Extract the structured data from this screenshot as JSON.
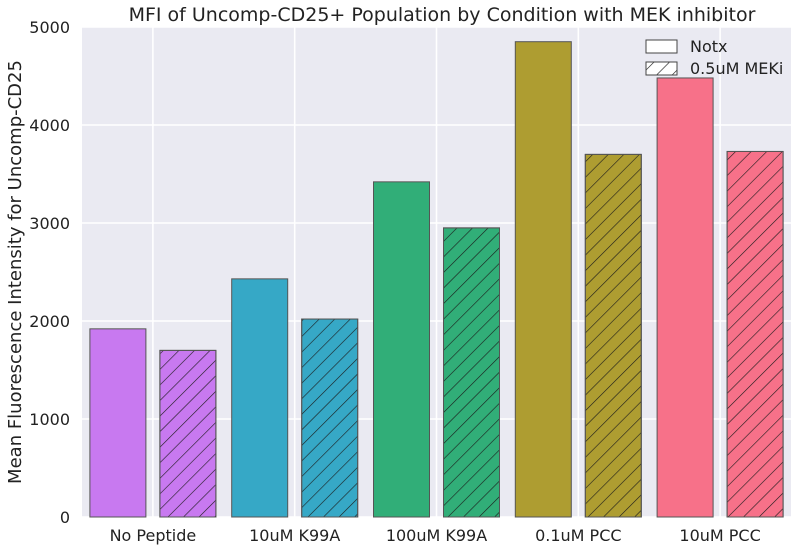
{
  "chart_data": {
    "type": "bar",
    "title": "MFI of Uncomp-CD25+ Population by Condition with MEK inhibitor",
    "xlabel": "",
    "ylabel": "Mean Fluorescence Intensity for Uncomp-CD25",
    "categories": [
      "No Peptide",
      "10uM K99A",
      "100uM K99A",
      "0.1uM PCC",
      "10uM PCC"
    ],
    "series": [
      {
        "name": "Notx",
        "hatch": false,
        "values": [
          1920,
          2430,
          3420,
          4850,
          4480
        ]
      },
      {
        "name": "0.5uM MEKi",
        "hatch": true,
        "values": [
          1700,
          2020,
          2950,
          3700,
          3730
        ]
      }
    ],
    "category_colors": [
      "#c879f0",
      "#36a8c6",
      "#31ae78",
      "#ae9d31",
      "#f77189"
    ],
    "ylim": [
      0,
      5000
    ],
    "yticks": [
      "0",
      "1000",
      "2000",
      "3000",
      "4000",
      "5000"
    ],
    "grid": true,
    "legend_position": "top-right",
    "background_color": "#eaeaf2",
    "grid_color": "#ffffff"
  }
}
